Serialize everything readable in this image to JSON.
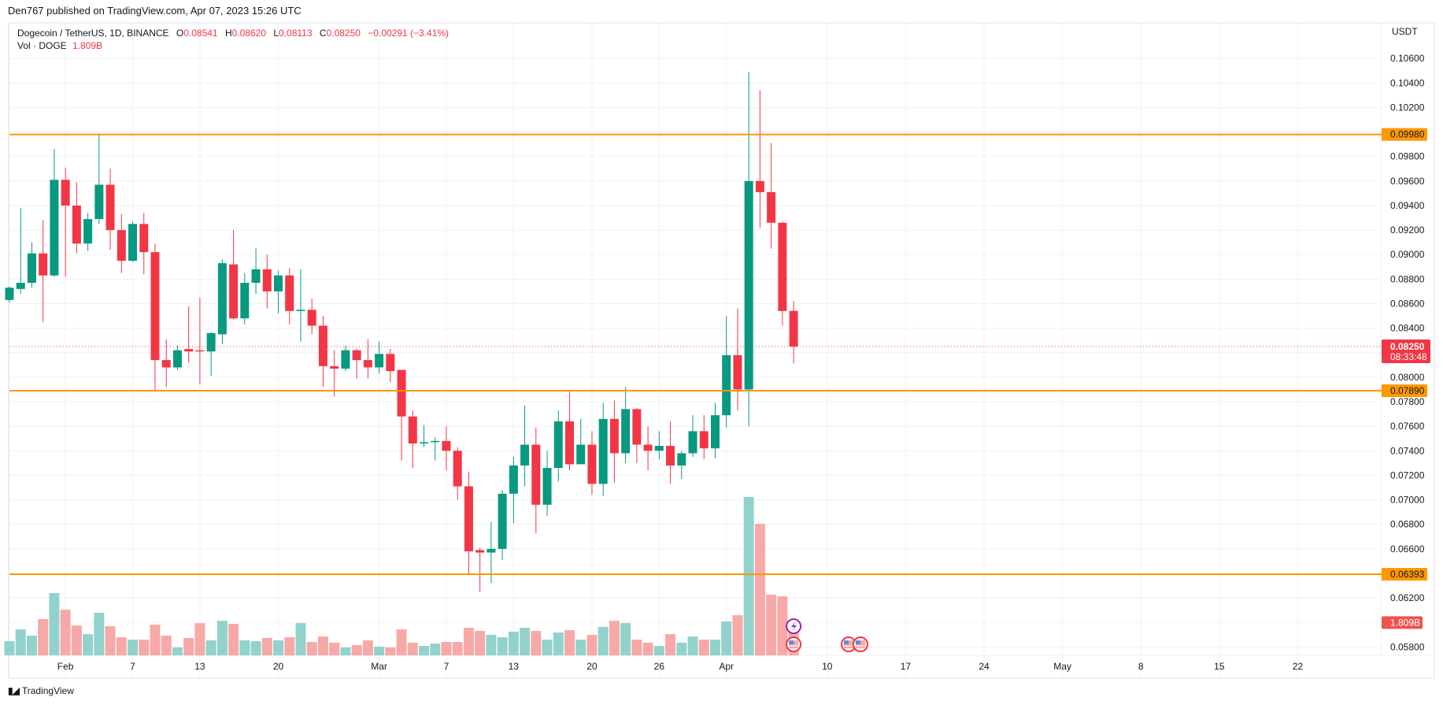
{
  "header": {
    "published": "Den767 published on TradingView.com, Apr 07, 2023 15:26 UTC"
  },
  "legend": {
    "symbol": "Dogecoin / TetherUS, 1D, BINANCE",
    "open_label": "O",
    "open": "0.08541",
    "high_label": "H",
    "high": "0.08620",
    "low_label": "L",
    "low": "0.08113",
    "close_label": "C",
    "close": "0.08250",
    "change": "−0.00291 (−3.41%)",
    "vol_label": "Vol · DOGE",
    "vol_value": "1.809B"
  },
  "footer": {
    "brand": "TradingView"
  },
  "colors": {
    "up": "#089981",
    "down": "#f23645",
    "vol_up": "#92d2cc",
    "vol_down": "#f7a9a7",
    "level": "#ff9800",
    "grid": "#f0f1f4"
  },
  "chart_data": {
    "type": "candlestick",
    "title": "",
    "currency": "USDT",
    "ylim": [
      0.057,
      0.107
    ],
    "grid": true,
    "y_ticks": [
      "0.10600",
      "0.10400",
      "0.10200",
      "0.09800",
      "0.09600",
      "0.09400",
      "0.09200",
      "0.09000",
      "0.08800",
      "0.08600",
      "0.08400",
      "0.08000",
      "0.07800",
      "0.07600",
      "0.07400",
      "0.07200",
      "0.07000",
      "0.06800",
      "0.06600",
      "0.06200",
      "0.05800"
    ],
    "x_ticks": [
      {
        "label": "Feb",
        "date": "2023-02-01"
      },
      {
        "label": "7",
        "date": "2023-02-07"
      },
      {
        "label": "13",
        "date": "2023-02-13"
      },
      {
        "label": "20",
        "date": "2023-02-20"
      },
      {
        "label": "Mar",
        "date": "2023-03-01"
      },
      {
        "label": "7",
        "date": "2023-03-07"
      },
      {
        "label": "13",
        "date": "2023-03-13"
      },
      {
        "label": "20",
        "date": "2023-03-20"
      },
      {
        "label": "26",
        "date": "2023-03-26"
      },
      {
        "label": "Apr",
        "date": "2023-04-01"
      },
      {
        "label": "10",
        "date": "2023-04-10"
      },
      {
        "label": "17",
        "date": "2023-04-17"
      },
      {
        "label": "24",
        "date": "2023-04-24"
      },
      {
        "label": "May",
        "date": "2023-05-01"
      },
      {
        "label": "8",
        "date": "2023-05-08"
      },
      {
        "label": "15",
        "date": "2023-05-15"
      },
      {
        "label": "22",
        "date": "2023-05-22"
      }
    ],
    "levels": [
      {
        "value": 0.0998,
        "label": "0.09980"
      },
      {
        "value": 0.0789,
        "label": "0.07890"
      },
      {
        "value": 0.06393,
        "label": "0.06393"
      }
    ],
    "last_price": {
      "value": 0.0825,
      "label": "0.08250",
      "countdown": "08:33:48"
    },
    "last_volume": {
      "value": 1.809,
      "label": "1.809B"
    },
    "volume_unit": "B",
    "candles_columns": [
      "date",
      "open",
      "high",
      "low",
      "close",
      "volume_B"
    ],
    "candles": [
      [
        "2023-01-27",
        0.0863,
        0.0874,
        0.0861,
        0.0873,
        0.78
      ],
      [
        "2023-01-28",
        0.0872,
        0.0938,
        0.0868,
        0.0877,
        1.44
      ],
      [
        "2023-01-29",
        0.0877,
        0.091,
        0.0873,
        0.0901,
        1.09
      ],
      [
        "2023-01-30",
        0.0901,
        0.0928,
        0.0845,
        0.0883,
        2.0
      ],
      [
        "2023-01-31",
        0.0883,
        0.0986,
        0.0882,
        0.0961,
        3.44
      ],
      [
        "2023-02-01",
        0.0961,
        0.0971,
        0.0882,
        0.094,
        2.52
      ],
      [
        "2023-02-02",
        0.094,
        0.0959,
        0.0901,
        0.0909,
        1.65
      ],
      [
        "2023-02-03",
        0.0909,
        0.0934,
        0.0903,
        0.0929,
        1.17
      ],
      [
        "2023-02-04",
        0.0929,
        0.0998,
        0.0925,
        0.0957,
        2.35
      ],
      [
        "2023-02-05",
        0.0957,
        0.097,
        0.0904,
        0.092,
        1.61
      ],
      [
        "2023-02-06",
        0.092,
        0.0933,
        0.0885,
        0.0895,
        1.0
      ],
      [
        "2023-02-07",
        0.0895,
        0.0927,
        0.0894,
        0.0925,
        0.87
      ],
      [
        "2023-02-08",
        0.0925,
        0.0934,
        0.0884,
        0.0902,
        0.87
      ],
      [
        "2023-02-09",
        0.0902,
        0.0909,
        0.0789,
        0.0814,
        1.7
      ],
      [
        "2023-02-10",
        0.0814,
        0.0831,
        0.0792,
        0.0808,
        1.09
      ],
      [
        "2023-02-11",
        0.0808,
        0.0826,
        0.0806,
        0.0822,
        0.44
      ],
      [
        "2023-02-12",
        0.0823,
        0.0858,
        0.0812,
        0.0821,
        0.96
      ],
      [
        "2023-02-13",
        0.0822,
        0.0865,
        0.0794,
        0.0821,
        1.78
      ],
      [
        "2023-02-14",
        0.0821,
        0.0837,
        0.0801,
        0.0836,
        0.83
      ],
      [
        "2023-02-15",
        0.0835,
        0.0896,
        0.0827,
        0.0893,
        1.91
      ],
      [
        "2023-02-16",
        0.0892,
        0.092,
        0.0847,
        0.0848,
        1.74
      ],
      [
        "2023-02-17",
        0.0848,
        0.0885,
        0.0843,
        0.0877,
        0.83
      ],
      [
        "2023-02-18",
        0.0877,
        0.0905,
        0.0868,
        0.0888,
        0.78
      ],
      [
        "2023-02-19",
        0.0888,
        0.09,
        0.0856,
        0.087,
        0.96
      ],
      [
        "2023-02-20",
        0.087,
        0.0887,
        0.0852,
        0.0883,
        0.83
      ],
      [
        "2023-02-21",
        0.0883,
        0.0889,
        0.0843,
        0.0854,
        1.0
      ],
      [
        "2023-02-22",
        0.0854,
        0.0888,
        0.0829,
        0.0855,
        1.78
      ],
      [
        "2023-02-23",
        0.0855,
        0.0864,
        0.0835,
        0.0842,
        0.74
      ],
      [
        "2023-02-24",
        0.0842,
        0.085,
        0.0792,
        0.0809,
        1.04
      ],
      [
        "2023-02-25",
        0.0809,
        0.0822,
        0.0784,
        0.0807,
        0.7
      ],
      [
        "2023-02-26",
        0.0807,
        0.0826,
        0.0805,
        0.0822,
        0.44
      ],
      [
        "2023-02-27",
        0.0822,
        0.0823,
        0.0799,
        0.0814,
        0.57
      ],
      [
        "2023-02-28",
        0.0814,
        0.0831,
        0.0799,
        0.0808,
        0.83
      ],
      [
        "2023-03-01",
        0.0808,
        0.0829,
        0.0803,
        0.0819,
        0.48
      ],
      [
        "2023-03-02",
        0.0819,
        0.0823,
        0.0796,
        0.0805,
        0.44
      ],
      [
        "2023-03-03",
        0.0806,
        0.0806,
        0.0732,
        0.0768,
        1.44
      ],
      [
        "2023-03-04",
        0.0768,
        0.0773,
        0.0726,
        0.0746,
        0.7
      ],
      [
        "2023-03-05",
        0.0746,
        0.0761,
        0.0743,
        0.0747,
        0.52
      ],
      [
        "2023-03-06",
        0.0747,
        0.0751,
        0.0732,
        0.0748,
        0.65
      ],
      [
        "2023-03-07",
        0.0748,
        0.076,
        0.0724,
        0.074,
        0.74
      ],
      [
        "2023-03-08",
        0.074,
        0.0743,
        0.07,
        0.0711,
        0.74
      ],
      [
        "2023-03-09",
        0.0711,
        0.0723,
        0.0639,
        0.0658,
        1.52
      ],
      [
        "2023-03-10",
        0.0659,
        0.0661,
        0.0625,
        0.0657,
        1.35
      ],
      [
        "2023-03-11",
        0.0657,
        0.0682,
        0.0632,
        0.066,
        1.13
      ],
      [
        "2023-03-12",
        0.066,
        0.0708,
        0.0651,
        0.0705,
        1.0
      ],
      [
        "2023-03-13",
        0.0705,
        0.0735,
        0.0681,
        0.0728,
        1.31
      ],
      [
        "2023-03-14",
        0.0728,
        0.0777,
        0.0711,
        0.0745,
        1.52
      ],
      [
        "2023-03-15",
        0.0745,
        0.0759,
        0.0673,
        0.0696,
        1.35
      ],
      [
        "2023-03-16",
        0.0696,
        0.074,
        0.0687,
        0.0726,
        0.87
      ],
      [
        "2023-03-17",
        0.0726,
        0.0773,
        0.0715,
        0.0764,
        1.26
      ],
      [
        "2023-03-18",
        0.0764,
        0.0789,
        0.0724,
        0.0729,
        1.39
      ],
      [
        "2023-03-19",
        0.0729,
        0.0766,
        0.0729,
        0.0745,
        0.87
      ],
      [
        "2023-03-20",
        0.0745,
        0.0756,
        0.0704,
        0.0713,
        1.13
      ],
      [
        "2023-03-21",
        0.0713,
        0.0779,
        0.0703,
        0.0766,
        1.57
      ],
      [
        "2023-03-22",
        0.0766,
        0.0781,
        0.0714,
        0.0738,
        1.91
      ],
      [
        "2023-03-23",
        0.0738,
        0.0792,
        0.073,
        0.0774,
        1.78
      ],
      [
        "2023-03-24",
        0.0774,
        0.0775,
        0.073,
        0.0745,
        0.87
      ],
      [
        "2023-03-25",
        0.0745,
        0.076,
        0.0724,
        0.074,
        0.7
      ],
      [
        "2023-03-26",
        0.074,
        0.0756,
        0.0733,
        0.0744,
        0.52
      ],
      [
        "2023-03-27",
        0.0744,
        0.0764,
        0.0713,
        0.0728,
        1.17
      ],
      [
        "2023-03-28",
        0.0728,
        0.074,
        0.0717,
        0.0738,
        0.7
      ],
      [
        "2023-03-29",
        0.0738,
        0.0769,
        0.0735,
        0.0756,
        1.04
      ],
      [
        "2023-03-30",
        0.0756,
        0.0769,
        0.0733,
        0.0742,
        0.87
      ],
      [
        "2023-03-31",
        0.0742,
        0.0779,
        0.0734,
        0.0769,
        0.87
      ],
      [
        "2023-04-01",
        0.0769,
        0.085,
        0.0759,
        0.0818,
        1.87
      ],
      [
        "2023-04-02",
        0.0818,
        0.0856,
        0.0773,
        0.079,
        2.22
      ],
      [
        "2023-04-03",
        0.079,
        0.1049,
        0.076,
        0.096,
        8.74
      ],
      [
        "2023-04-04",
        0.096,
        0.1034,
        0.0922,
        0.0951,
        7.26
      ],
      [
        "2023-04-05",
        0.0951,
        0.0991,
        0.0905,
        0.0926,
        3.35
      ],
      [
        "2023-04-06",
        0.0926,
        0.0927,
        0.0842,
        0.0854,
        3.26
      ],
      [
        "2023-04-07",
        0.08541,
        0.0862,
        0.08113,
        0.0825,
        1.809
      ]
    ],
    "event_icons": [
      "lightning-icon",
      "us-flag-icon",
      "us-flag-icon",
      "us-flag-icon"
    ]
  }
}
